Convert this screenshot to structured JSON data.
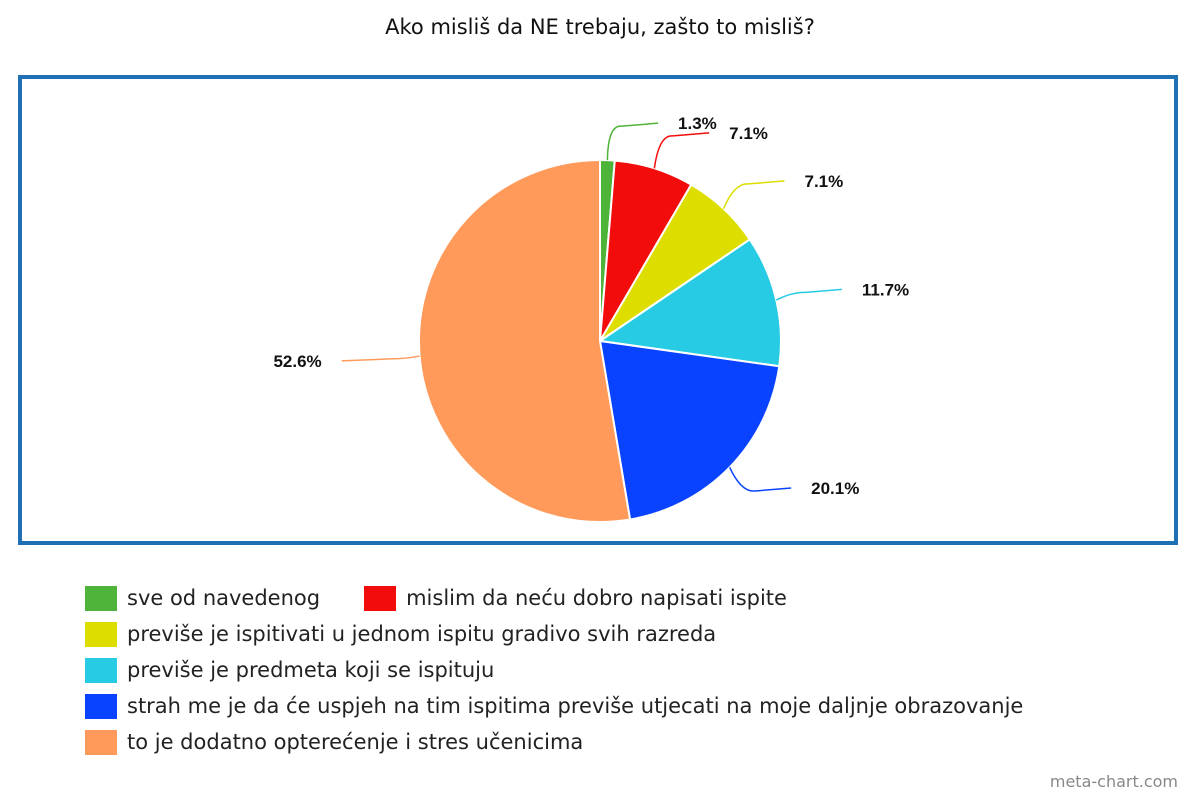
{
  "chart_data": {
    "type": "pie",
    "title": "Ako misliš da NE trebaju, zašto to misliš?",
    "legend_position": "bottom",
    "slices": [
      {
        "name": "sve od navedenog",
        "value": 1.3,
        "label": "1.3%",
        "color": "#4db339"
      },
      {
        "name": "mislim da neću dobro napisati ispite",
        "value": 7.1,
        "label": "7.1%",
        "color": "#f20c0c"
      },
      {
        "name": "previše je ispitivati u jednom ispitu gradivo svih razreda",
        "value": 7.1,
        "label": "7.1%",
        "color": "#dddd00"
      },
      {
        "name": "previše je predmeta koji se ispituju",
        "value": 11.7,
        "label": "11.7%",
        "color": "#27cce4"
      },
      {
        "name": "strah me je da će uspjeh na tim ispitima previše utjecati na moje daljnje obrazovanje",
        "value": 20.1,
        "label": "20.1%",
        "color": "#0a43ff"
      },
      {
        "name": "to je dodatno opterećenje i stres učenicima",
        "value": 52.6,
        "label": "52.6%",
        "color": "#ff9a5b"
      }
    ]
  },
  "watermark": "meta-chart.com"
}
